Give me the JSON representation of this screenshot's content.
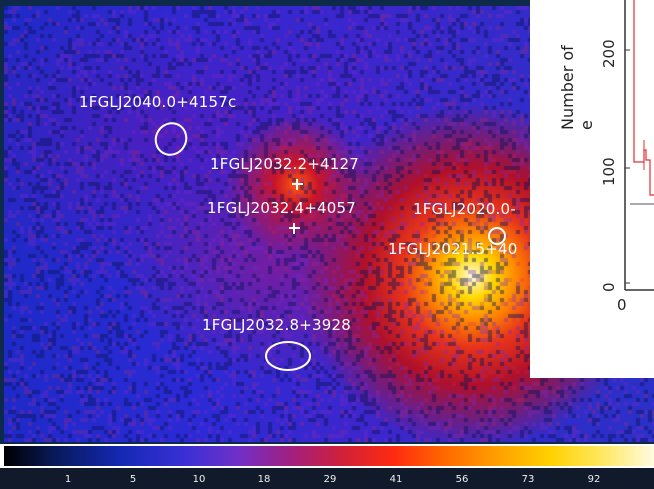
{
  "sources": [
    {
      "name": "1FGLJ2040.0+4157c"
    },
    {
      "name": "1FGLJ2032.2+4127"
    },
    {
      "name": "1FGLJ2032.4+4057"
    },
    {
      "name": "1FGLJ2020.0-"
    },
    {
      "name": "1FGLJ2021.5+40"
    },
    {
      "name": "1FGLJ2032.8+3928"
    }
  ],
  "inset": {
    "ylabel": "Number of e",
    "yticks": [
      "200",
      "100",
      "0"
    ],
    "xtick": "0"
  },
  "colorbar": {
    "ticks": [
      "1",
      "5",
      "10",
      "18",
      "29",
      "41",
      "56",
      "73",
      "92"
    ]
  },
  "colors": {
    "background": "#2a30c8",
    "hot": "#fffde0",
    "label": "#ffffff",
    "inset_curve": "#e03030"
  }
}
